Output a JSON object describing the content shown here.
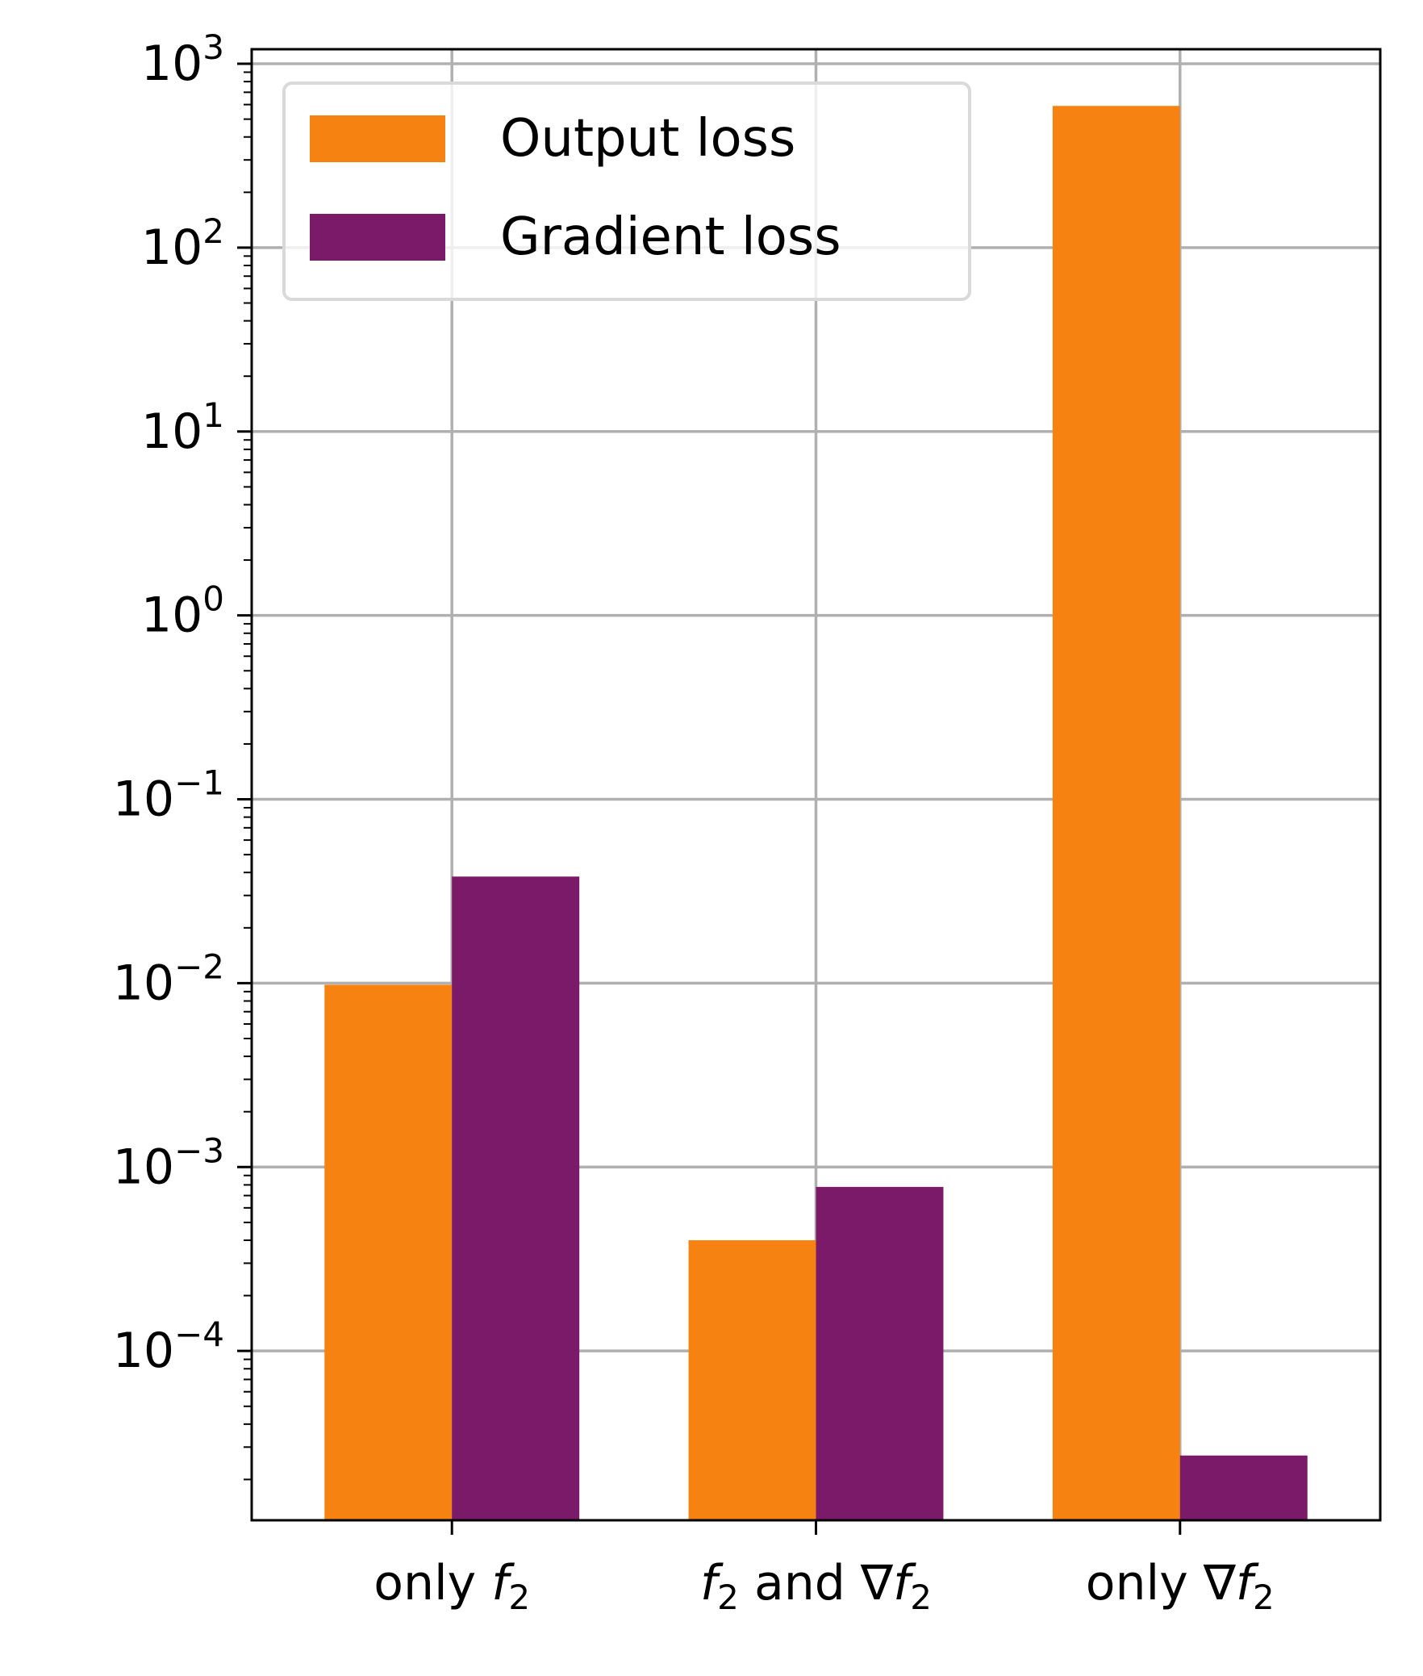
{
  "chart_data": {
    "type": "bar",
    "yscale": "log",
    "ylim": [
      1.2e-05,
      1200
    ],
    "yticks": [
      {
        "value": 0.0001,
        "base": "10",
        "exp": "−4"
      },
      {
        "value": 0.001,
        "base": "10",
        "exp": "−3"
      },
      {
        "value": 0.01,
        "base": "10",
        "exp": "−2"
      },
      {
        "value": 0.1,
        "base": "10",
        "exp": "−1"
      },
      {
        "value": 1,
        "base": "10",
        "exp": "0"
      },
      {
        "value": 10,
        "base": "10",
        "exp": "1"
      },
      {
        "value": 100,
        "base": "10",
        "exp": "2"
      },
      {
        "value": 1000,
        "base": "10",
        "exp": "3"
      }
    ],
    "categories": [
      {
        "parts": [
          {
            "t": "only ",
            "s": "n"
          },
          {
            "t": "f",
            "s": "i"
          },
          {
            "t": "2",
            "s": "sub"
          }
        ]
      },
      {
        "parts": [
          {
            "t": "f",
            "s": "i"
          },
          {
            "t": "2",
            "s": "sub"
          },
          {
            "t": " and ∇",
            "s": "n"
          },
          {
            "t": "f",
            "s": "i"
          },
          {
            "t": "2",
            "s": "sub"
          }
        ]
      },
      {
        "parts": [
          {
            "t": "only ∇",
            "s": "n"
          },
          {
            "t": "f",
            "s": "i"
          },
          {
            "t": "2",
            "s": "sub"
          }
        ]
      }
    ],
    "series": [
      {
        "name": "Output loss",
        "color": "#f58211",
        "values": [
          0.0098,
          0.0004,
          590
        ]
      },
      {
        "name": "Gradient loss",
        "color": "#7a1a68",
        "values": [
          0.038,
          0.00078,
          2.7e-05
        ]
      }
    ],
    "grid": true,
    "legend_position": "upper-left",
    "colors": {
      "grid": "#b0b0b0",
      "axis": "#000000",
      "legend_border": "#d9d9d9"
    }
  }
}
